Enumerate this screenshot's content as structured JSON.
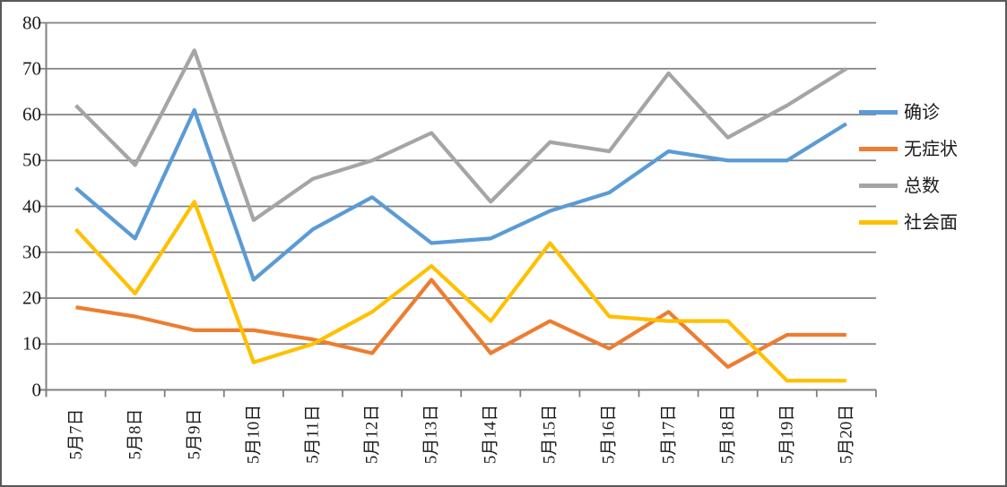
{
  "chart_data": {
    "type": "line",
    "categories": [
      "5月7日",
      "5月8日",
      "5月9日",
      "5月10日",
      "5月11日",
      "5月12日",
      "5月13日",
      "5月14日",
      "5月15日",
      "5月16日",
      "5月17日",
      "5月18日",
      "5月19日",
      "5月20日"
    ],
    "series": [
      {
        "name": "确诊",
        "key": "confirmed",
        "color": "#5B9BD5",
        "values": [
          44,
          33,
          61,
          24,
          35,
          42,
          32,
          33,
          39,
          43,
          52,
          50,
          50,
          58
        ]
      },
      {
        "name": "无症状",
        "key": "asymptomatic",
        "color": "#ED7D31",
        "values": [
          18,
          16,
          13,
          13,
          11,
          8,
          24,
          8,
          15,
          9,
          17,
          5,
          12,
          12
        ]
      },
      {
        "name": "总数",
        "key": "total",
        "color": "#A5A5A5",
        "values": [
          62,
          49,
          74,
          37,
          46,
          50,
          56,
          41,
          54,
          52,
          69,
          55,
          62,
          70
        ]
      },
      {
        "name": "社会面",
        "key": "community",
        "color": "#FFC000",
        "values": [
          35,
          21,
          41,
          6,
          10,
          17,
          27,
          15,
          32,
          16,
          15,
          15,
          2,
          2
        ]
      }
    ],
    "yticks": [
      0,
      10,
      20,
      30,
      40,
      50,
      60,
      70,
      80
    ],
    "ylim": [
      0,
      80
    ],
    "grid": true,
    "legend_position": "right"
  },
  "colors": {
    "gridline": "#808080",
    "axis": "#808080",
    "border": "#595959",
    "text": "#1a1a1a",
    "background": "#ffffff"
  }
}
